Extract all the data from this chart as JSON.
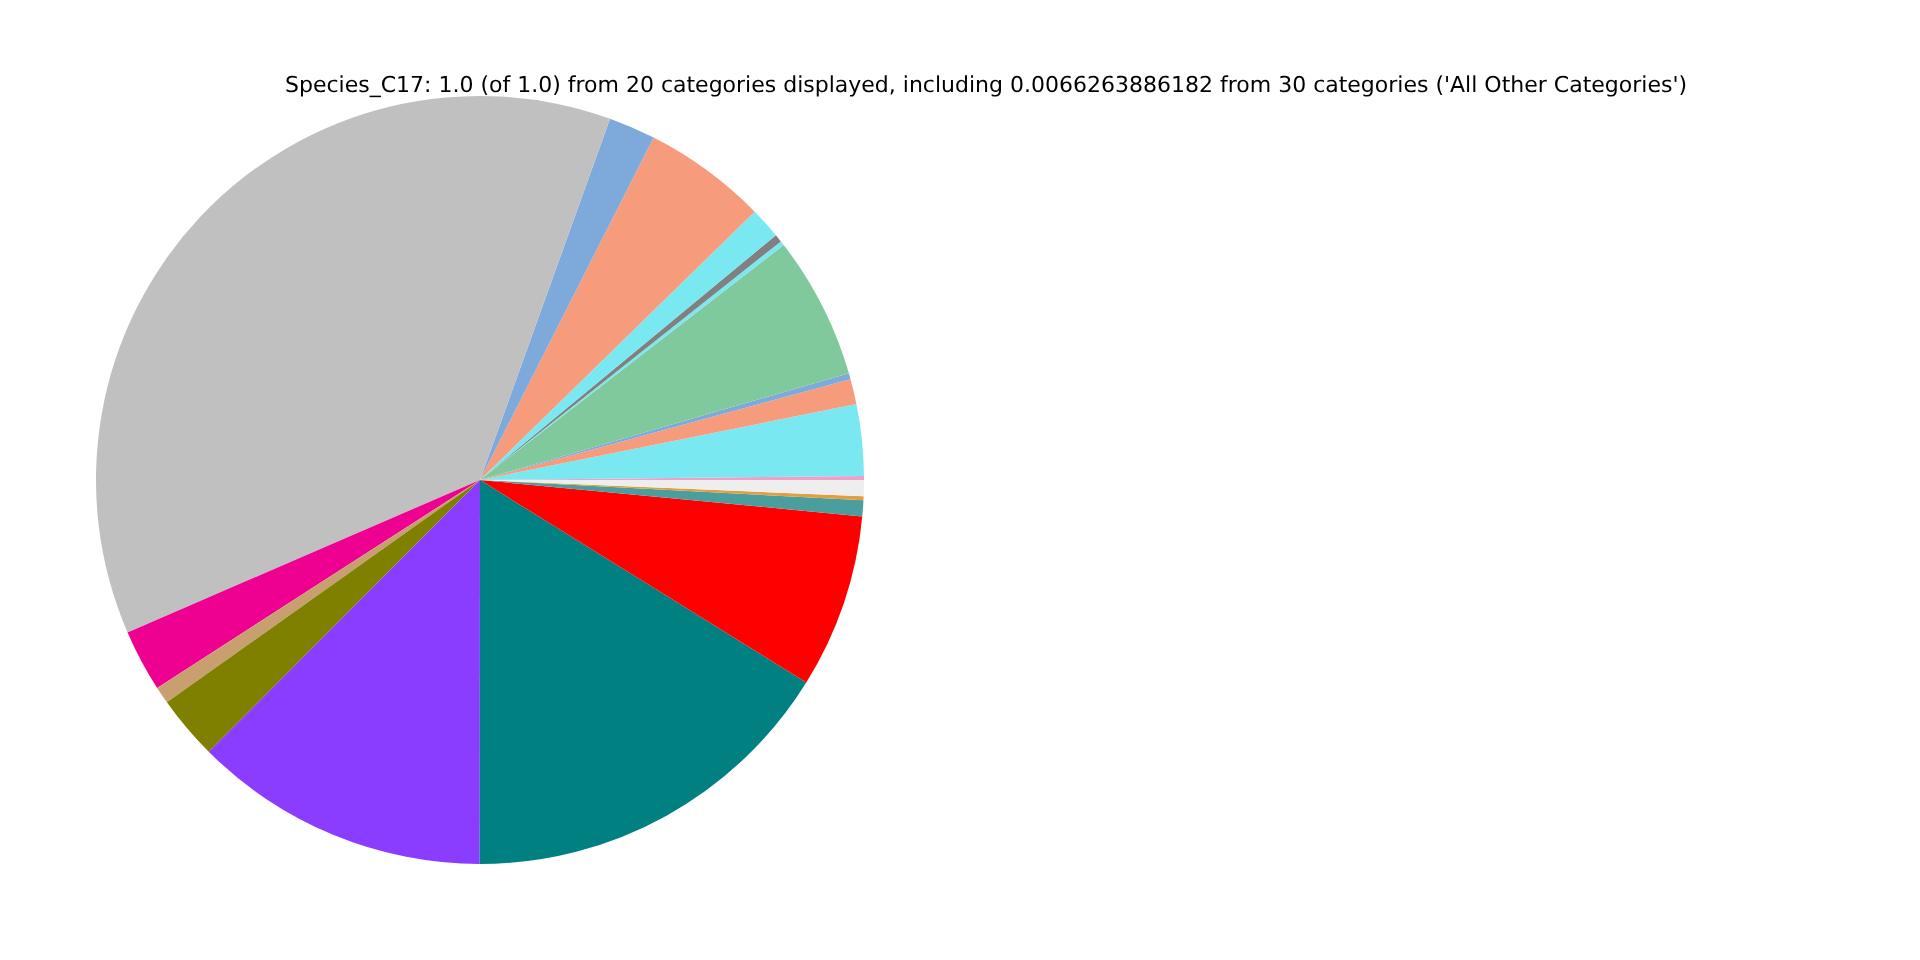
{
  "chart_data": {
    "type": "pie",
    "title": "Species_C17: 1.0 (of 1.0) from 20 categories displayed, including 0.0066263886182 from 30 categories ('All Other Categories')",
    "categories": [
      null,
      null,
      null,
      null,
      null,
      null,
      null,
      null,
      null,
      null,
      null,
      null,
      null,
      null,
      null,
      null,
      null,
      null,
      null,
      null
    ],
    "values": [
      0.17,
      3.0,
      1.06,
      0.25,
      6.0,
      0.19,
      0.33,
      1.31,
      5.22,
      1.97,
      36.99,
      2.61,
      0.72,
      2.69,
      12.47,
      16.17,
      7.33,
      0.67,
      0.17,
      0.67
    ],
    "colors": [
      "#f0a0c8",
      "#7ae8f0",
      "#f79b7d",
      "#7eaadb",
      "#80c99c",
      "#7ae8f0",
      "#808080",
      "#7ae8f0",
      "#f79b7d",
      "#7eaadb",
      "#c0c0c0",
      "#ee0090",
      "#c8a070",
      "#808000",
      "#8b3dff",
      "#008080",
      "#ff0000",
      "#4a9e9e",
      "#e0a040",
      "#eeeeee"
    ]
  }
}
